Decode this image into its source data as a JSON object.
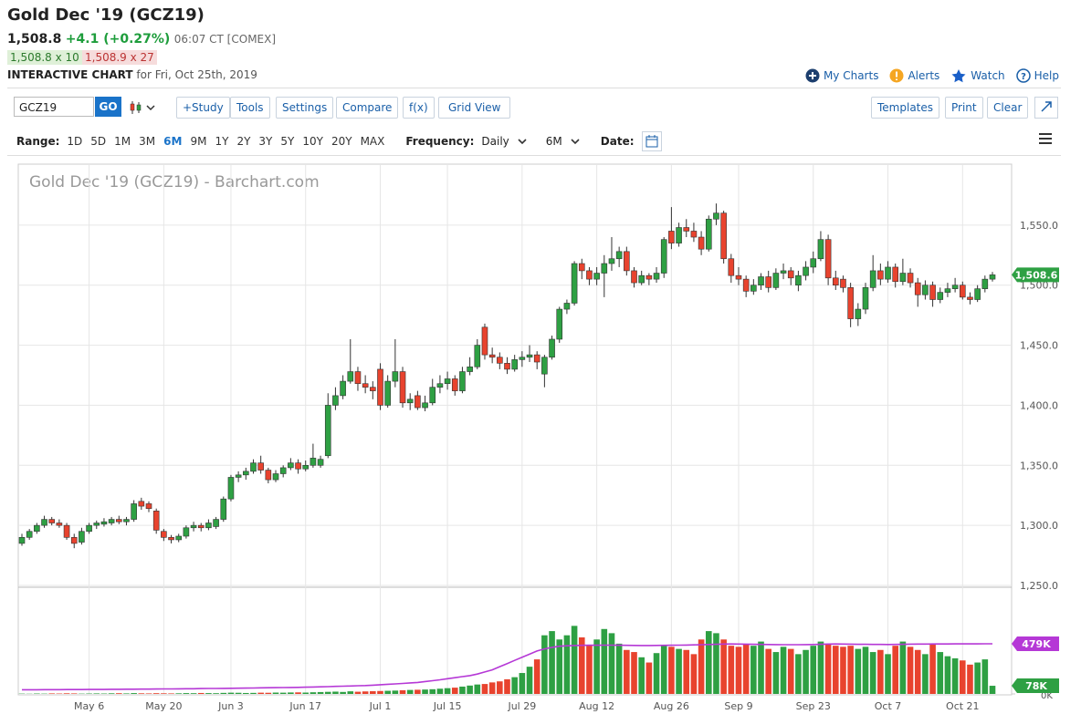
{
  "header": {
    "title": "Gold Dec '19 (GCZ19)",
    "last": "1,508.8",
    "change": "+4.1 (+0.27%)",
    "time": "06:07 CT [COMEX]",
    "bid": "1,508.8 x 10",
    "ask": "1,508.9 x 27",
    "chart_label": "INTERACTIVE CHART",
    "chart_date": "for Fri, Oct 25th, 2019",
    "links": [
      "My Charts",
      "Alerts",
      "Watch",
      "Help"
    ]
  },
  "toolbar": {
    "symbol": "GCZ19",
    "go": "GO",
    "buttons": [
      "+Study",
      "Tools",
      "Settings",
      "Compare",
      "f(x)",
      "Grid View"
    ],
    "right_buttons": [
      "Templates",
      "Print",
      "Clear"
    ]
  },
  "range_bar": {
    "label": "Range:",
    "options": [
      "1D",
      "5D",
      "1M",
      "3M",
      "6M",
      "9M",
      "1Y",
      "2Y",
      "3Y",
      "5Y",
      "10Y",
      "20Y",
      "MAX"
    ],
    "active": "6M",
    "frequency_label": "Frequency:",
    "frequency": "Daily",
    "period": "6M",
    "date_label": "Date:"
  },
  "chart_data": {
    "type": "candlestick",
    "watermark": "Gold Dec '19 (GCZ19) - Barchart.com",
    "categories": [
      null,
      null,
      null,
      null,
      null,
      null,
      null,
      null,
      null,
      "May 6",
      null,
      null,
      null,
      null,
      null,
      null,
      null,
      null,
      null,
      "May 20",
      null,
      null,
      null,
      null,
      null,
      null,
      null,
      null,
      "Jun 3",
      null,
      null,
      null,
      null,
      null,
      null,
      null,
      null,
      null,
      "Jun 17",
      null,
      null,
      null,
      null,
      null,
      null,
      null,
      null,
      null,
      "Jul 1",
      null,
      null,
      null,
      null,
      null,
      null,
      null,
      null,
      "Jul 15",
      null,
      null,
      null,
      null,
      null,
      null,
      null,
      null,
      null,
      "Jul 29",
      null,
      null,
      null,
      null,
      null,
      null,
      null,
      null,
      null,
      "Aug 12",
      null,
      null,
      null,
      null,
      null,
      null,
      null,
      null,
      null,
      "Aug 26",
      null,
      null,
      null,
      null,
      null,
      null,
      null,
      null,
      "Sep 9",
      null,
      null,
      null,
      null,
      null,
      null,
      null,
      null,
      null,
      "Sep 23",
      null,
      null,
      null,
      null,
      null,
      null,
      null,
      null,
      null,
      "Oct 7",
      null,
      null,
      null,
      null,
      null,
      null,
      null,
      null,
      null,
      "Oct 21",
      null,
      null,
      null,
      null
    ],
    "ohlc": [
      [
        1285,
        1293,
        1283,
        1290
      ],
      [
        1290,
        1297,
        1288,
        1295
      ],
      [
        1295,
        1302,
        1293,
        1300
      ],
      [
        1300,
        1308,
        1298,
        1305
      ],
      [
        1305,
        1307,
        1300,
        1302
      ],
      [
        1302,
        1305,
        1298,
        1300
      ],
      [
        1300,
        1302,
        1288,
        1290
      ],
      [
        1290,
        1293,
        1281,
        1285
      ],
      [
        1286,
        1298,
        1284,
        1295
      ],
      [
        1295,
        1302,
        1293,
        1300
      ],
      [
        1300,
        1304,
        1297,
        1302
      ],
      [
        1301,
        1306,
        1299,
        1303
      ],
      [
        1302,
        1307,
        1300,
        1305
      ],
      [
        1305,
        1308,
        1301,
        1303
      ],
      [
        1303,
        1307,
        1300,
        1305
      ],
      [
        1305,
        1321,
        1303,
        1318
      ],
      [
        1320,
        1323,
        1313,
        1316
      ],
      [
        1318,
        1320,
        1311,
        1314
      ],
      [
        1312,
        1314,
        1293,
        1296
      ],
      [
        1295,
        1297,
        1287,
        1290
      ],
      [
        1290,
        1292,
        1285,
        1288
      ],
      [
        1288,
        1293,
        1286,
        1291
      ],
      [
        1291,
        1300,
        1289,
        1298
      ],
      [
        1298,
        1303,
        1295,
        1300
      ],
      [
        1300,
        1302,
        1295,
        1298
      ],
      [
        1298,
        1305,
        1296,
        1302
      ],
      [
        1299,
        1307,
        1297,
        1305
      ],
      [
        1305,
        1324,
        1303,
        1322
      ],
      [
        1322,
        1342,
        1320,
        1340
      ],
      [
        1340,
        1345,
        1336,
        1342
      ],
      [
        1342,
        1348,
        1338,
        1345
      ],
      [
        1345,
        1355,
        1343,
        1352
      ],
      [
        1352,
        1358,
        1343,
        1346
      ],
      [
        1346,
        1348,
        1335,
        1338
      ],
      [
        1338,
        1346,
        1336,
        1343
      ],
      [
        1343,
        1350,
        1340,
        1348
      ],
      [
        1348,
        1356,
        1346,
        1352
      ],
      [
        1352,
        1355,
        1343,
        1347
      ],
      [
        1347,
        1354,
        1345,
        1350
      ],
      [
        1350,
        1368,
        1348,
        1356
      ],
      [
        1350,
        1358,
        1348,
        1355
      ],
      [
        1358,
        1410,
        1356,
        1400
      ],
      [
        1400,
        1415,
        1396,
        1408
      ],
      [
        1408,
        1425,
        1405,
        1420
      ],
      [
        1420,
        1455,
        1418,
        1428
      ],
      [
        1428,
        1432,
        1412,
        1418
      ],
      [
        1418,
        1425,
        1410,
        1415
      ],
      [
        1415,
        1420,
        1405,
        1412
      ],
      [
        1430,
        1435,
        1396,
        1400
      ],
      [
        1400,
        1425,
        1398,
        1420
      ],
      [
        1420,
        1455,
        1415,
        1428
      ],
      [
        1428,
        1432,
        1398,
        1402
      ],
      [
        1402,
        1410,
        1396,
        1405
      ],
      [
        1408,
        1412,
        1396,
        1398
      ],
      [
        1398,
        1408,
        1395,
        1402
      ],
      [
        1402,
        1422,
        1400,
        1415
      ],
      [
        1415,
        1425,
        1410,
        1418
      ],
      [
        1418,
        1428,
        1413,
        1422
      ],
      [
        1422,
        1425,
        1408,
        1412
      ],
      [
        1412,
        1432,
        1410,
        1428
      ],
      [
        1428,
        1440,
        1425,
        1432
      ],
      [
        1432,
        1455,
        1430,
        1450
      ],
      [
        1465,
        1468,
        1438,
        1442
      ],
      [
        1442,
        1448,
        1435,
        1440
      ],
      [
        1440,
        1444,
        1430,
        1435
      ],
      [
        1435,
        1440,
        1426,
        1430
      ],
      [
        1430,
        1442,
        1428,
        1438
      ],
      [
        1438,
        1445,
        1432,
        1440
      ],
      [
        1440,
        1450,
        1436,
        1442
      ],
      [
        1442,
        1445,
        1430,
        1436
      ],
      [
        1426,
        1442,
        1415,
        1440
      ],
      [
        1440,
        1458,
        1438,
        1455
      ],
      [
        1455,
        1482,
        1452,
        1480
      ],
      [
        1480,
        1488,
        1476,
        1485
      ],
      [
        1485,
        1520,
        1483,
        1518
      ],
      [
        1518,
        1522,
        1505,
        1512
      ],
      [
        1512,
        1515,
        1500,
        1505
      ],
      [
        1505,
        1515,
        1500,
        1510
      ],
      [
        1510,
        1525,
        1490,
        1518
      ],
      [
        1518,
        1540,
        1512,
        1522
      ],
      [
        1522,
        1532,
        1515,
        1528
      ],
      [
        1528,
        1532,
        1508,
        1512
      ],
      [
        1512,
        1515,
        1498,
        1502
      ],
      [
        1502,
        1512,
        1500,
        1508
      ],
      [
        1508,
        1510,
        1500,
        1505
      ],
      [
        1505,
        1515,
        1502,
        1510
      ],
      [
        1510,
        1540,
        1506,
        1538
      ],
      [
        1545,
        1565,
        1530,
        1535
      ],
      [
        1535,
        1552,
        1532,
        1548
      ],
      [
        1548,
        1555,
        1540,
        1545
      ],
      [
        1545,
        1552,
        1536,
        1540
      ],
      [
        1540,
        1545,
        1525,
        1530
      ],
      [
        1530,
        1558,
        1528,
        1555
      ],
      [
        1555,
        1568,
        1550,
        1560
      ],
      [
        1560,
        1562,
        1518,
        1522
      ],
      [
        1522,
        1526,
        1502,
        1508
      ],
      [
        1508,
        1515,
        1500,
        1505
      ],
      [
        1505,
        1508,
        1490,
        1495
      ],
      [
        1495,
        1505,
        1492,
        1500
      ],
      [
        1500,
        1510,
        1496,
        1507
      ],
      [
        1507,
        1512,
        1494,
        1498
      ],
      [
        1498,
        1514,
        1496,
        1510
      ],
      [
        1510,
        1518,
        1505,
        1512
      ],
      [
        1512,
        1515,
        1500,
        1506
      ],
      [
        1500,
        1512,
        1495,
        1508
      ],
      [
        1508,
        1520,
        1504,
        1515
      ],
      [
        1515,
        1528,
        1510,
        1522
      ],
      [
        1522,
        1545,
        1520,
        1538
      ],
      [
        1538,
        1542,
        1500,
        1506
      ],
      [
        1506,
        1512,
        1496,
        1500
      ],
      [
        1505,
        1508,
        1494,
        1498
      ],
      [
        1498,
        1502,
        1465,
        1472
      ],
      [
        1472,
        1485,
        1466,
        1480
      ],
      [
        1480,
        1502,
        1476,
        1498
      ],
      [
        1498,
        1525,
        1495,
        1512
      ],
      [
        1512,
        1518,
        1500,
        1505
      ],
      [
        1505,
        1520,
        1502,
        1515
      ],
      [
        1515,
        1518,
        1498,
        1503
      ],
      [
        1503,
        1522,
        1500,
        1510
      ],
      [
        1510,
        1514,
        1498,
        1502
      ],
      [
        1502,
        1506,
        1482,
        1492
      ],
      [
        1492,
        1504,
        1488,
        1500
      ],
      [
        1500,
        1503,
        1482,
        1488
      ],
      [
        1488,
        1498,
        1485,
        1494
      ],
      [
        1494,
        1502,
        1490,
        1497
      ],
      [
        1497,
        1506,
        1494,
        1500
      ],
      [
        1500,
        1503,
        1488,
        1490
      ],
      [
        1490,
        1494,
        1484,
        1488
      ],
      [
        1488,
        1500,
        1486,
        1497
      ],
      [
        1497,
        1508,
        1494,
        1505
      ],
      [
        1505,
        1511,
        1503,
        1508.6
      ]
    ],
    "up_color": "#2ea043",
    "down_color": "#e8432e",
    "ylim": [
      1250,
      1600
    ],
    "yticks": [
      {
        "value": 1250,
        "label": "1,250.0"
      },
      {
        "value": 1300,
        "label": "1,300.0"
      },
      {
        "value": 1350,
        "label": "1,350.0"
      },
      {
        "value": 1400,
        "label": "1,400.0"
      },
      {
        "value": 1450,
        "label": "1,450.0"
      },
      {
        "value": 1500,
        "label": "1,500.0"
      },
      {
        "value": 1550,
        "label": "1,550.0"
      }
    ],
    "last_price_label": "1,508.6",
    "volume": [
      3000,
      2000,
      4000,
      3000,
      5000,
      4000,
      6000,
      5000,
      3000,
      4000,
      5000,
      4000,
      6000,
      7000,
      5000,
      8000,
      6000,
      5000,
      7000,
      6000,
      5000,
      6000,
      8000,
      7000,
      9000,
      8000,
      7000,
      10000,
      12000,
      11000,
      9000,
      10000,
      12000,
      11000,
      13000,
      12000,
      14000,
      15000,
      13000,
      16000,
      18000,
      20000,
      22000,
      19000,
      25000,
      21000,
      24000,
      26000,
      28000,
      30000,
      32000,
      35000,
      38000,
      40000,
      42000,
      45000,
      50000,
      55000,
      60000,
      70000,
      80000,
      90000,
      95000,
      110000,
      120000,
      140000,
      160000,
      200000,
      260000,
      330000,
      560000,
      600000,
      520000,
      560000,
      650000,
      540000,
      470000,
      520000,
      620000,
      580000,
      480000,
      420000,
      400000,
      350000,
      300000,
      390000,
      470000,
      450000,
      430000,
      420000,
      380000,
      520000,
      600000,
      580000,
      520000,
      460000,
      450000,
      470000,
      460000,
      500000,
      430000,
      400000,
      450000,
      430000,
      380000,
      420000,
      460000,
      500000,
      470000,
      460000,
      450000,
      460000,
      430000,
      450000,
      400000,
      420000,
      380000,
      460000,
      500000,
      450000,
      420000,
      380000,
      470000,
      400000,
      360000,
      340000,
      320000,
      280000,
      300000,
      330000,
      78000
    ],
    "volume_label": "78K",
    "volume_ma": [
      40000,
      40000,
      40000,
      41000,
      41000,
      41000,
      42000,
      42000,
      42000,
      43000,
      43000,
      43000,
      44000,
      44000,
      45000,
      45000,
      46000,
      46000,
      47000,
      48000,
      48000,
      49000,
      50000,
      50000,
      51000,
      52000,
      52000,
      53000,
      54000,
      55000,
      56000,
      57000,
      58000,
      59000,
      60000,
      61000,
      62000,
      63000,
      64000,
      66000,
      68000,
      70000,
      72000,
      74000,
      76000,
      78000,
      80000,
      84000,
      88000,
      92000,
      96000,
      100000,
      105000,
      110000,
      118000,
      126000,
      135000,
      145000,
      155000,
      165000,
      175000,
      190000,
      210000,
      230000,
      260000,
      290000,
      320000,
      350000,
      380000,
      410000,
      430000,
      445000,
      455000,
      460000,
      462000,
      464000,
      465000,
      465000,
      466000,
      466000,
      465000,
      464000,
      463000,
      462000,
      462000,
      463000,
      464000,
      465000,
      466000,
      467000,
      468000,
      470000,
      472000,
      474000,
      476000,
      477000,
      476000,
      475000,
      474000,
      473000,
      472000,
      471000,
      470000,
      470000,
      470000,
      471000,
      472000,
      474000,
      476000,
      477000,
      476000,
      475000,
      474000,
      474000,
      473000,
      473000,
      472000,
      473000,
      474000,
      475000,
      476000,
      476000,
      477000,
      477000,
      477000,
      478000,
      478000,
      478000,
      478000,
      479000,
      479000
    ],
    "volume_ma_label": "479K",
    "volume_ma_color": "#b538d6",
    "vlim": [
      0,
      1010000
    ],
    "vticks": [
      {
        "value": 0,
        "label": "0K"
      }
    ],
    "grid": true
  }
}
